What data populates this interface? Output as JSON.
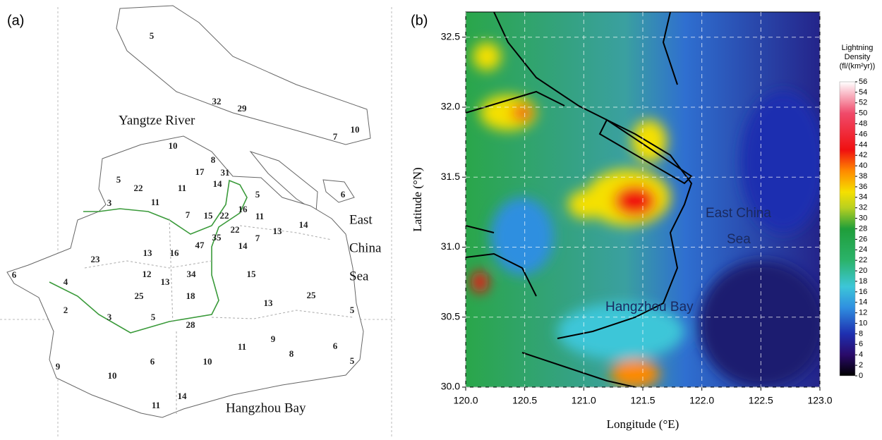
{
  "panel_a": {
    "label": "(a)",
    "annotations": [
      "Yangtze River",
      "East",
      "China",
      "Sea",
      "Hangzhou Bay"
    ],
    "station_values": [
      5,
      32,
      29,
      10,
      7,
      10,
      8,
      17,
      31,
      5,
      22,
      11,
      14,
      11,
      5,
      6,
      3,
      16,
      7,
      15,
      22,
      11,
      14,
      13,
      22,
      35,
      7,
      47,
      14,
      13,
      16,
      23,
      6,
      12,
      34,
      15,
      4,
      13,
      25,
      18,
      25,
      13,
      2,
      3,
      5,
      28,
      5,
      9,
      11,
      6,
      8,
      9,
      6,
      10,
      5,
      10,
      14,
      11
    ]
  },
  "chart_data": {
    "type": "heatmap",
    "label": "(b)",
    "xlabel": "Longitude (°E)",
    "ylabel": "Latitude (°N)",
    "xlim": [
      120,
      123
    ],
    "ylim": [
      30,
      32.68
    ],
    "xticks": [
      {
        "value": 120,
        "label": "120.0"
      },
      120.5,
      {
        "value": 121,
        "label": "121.0"
      },
      121.5,
      {
        "value": 122,
        "label": "122.0"
      },
      122.5,
      {
        "value": 123,
        "label": "123.0"
      }
    ],
    "yticks": [
      {
        "value": 30,
        "label": "30.0"
      },
      30.5,
      {
        "value": 31,
        "label": "31.0"
      },
      31.5,
      {
        "value": 32,
        "label": "32.0"
      },
      32.5
    ],
    "grid": true,
    "annotations": [
      [
        "East China",
        "Sea"
      ],
      "Hangzhou Bay"
    ],
    "colorbar": {
      "title": [
        "Lightning",
        "Density",
        "(fl/(km²yr))"
      ],
      "lim": [
        0,
        56
      ],
      "ticks": [
        0,
        2,
        4,
        6,
        8,
        10,
        12,
        14,
        16,
        18,
        20,
        22,
        24,
        26,
        28,
        30,
        32,
        34,
        36,
        38,
        40,
        42,
        44,
        46,
        48,
        50,
        52,
        54,
        56
      ],
      "colors": [
        {
          "value": 0,
          "color": "#000000"
        },
        {
          "value": 4,
          "color": "#2a0a6a"
        },
        {
          "value": 8,
          "color": "#1e2fb0"
        },
        {
          "value": 13,
          "color": "#2f8fe0"
        },
        {
          "value": 17,
          "color": "#3cc6d8"
        },
        {
          "value": 22,
          "color": "#2bb36a"
        },
        {
          "value": 28,
          "color": "#1f9e3a"
        },
        {
          "value": 32,
          "color": "#b8d020"
        },
        {
          "value": 35,
          "color": "#f5e000"
        },
        {
          "value": 39,
          "color": "#ff8a00"
        },
        {
          "value": 43,
          "color": "#f01010"
        },
        {
          "value": 50,
          "color": "#f04a6a"
        },
        {
          "value": 56,
          "color": "#ffffff"
        }
      ]
    }
  }
}
